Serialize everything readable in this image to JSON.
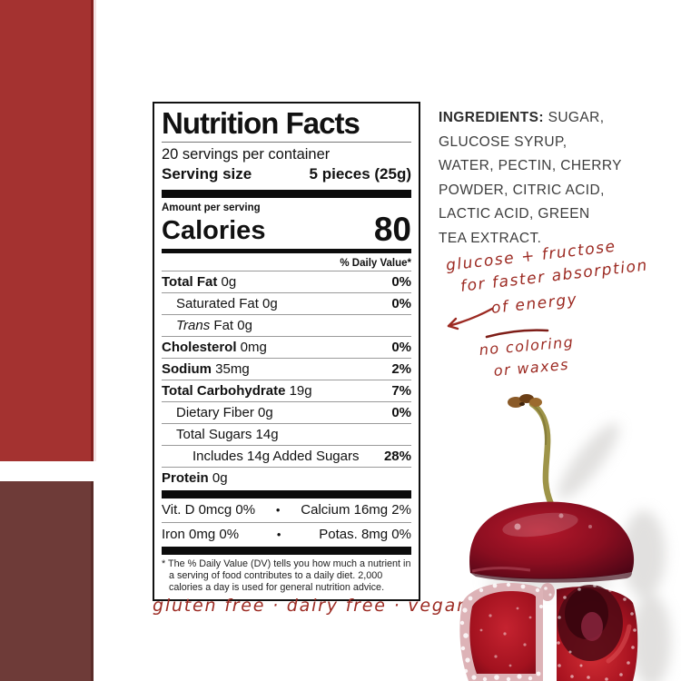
{
  "colors": {
    "panel_red": "#a43230",
    "panel_maroon": "#6e3b38",
    "handwriting_ink": "#9c2a22",
    "label_text": "#111111"
  },
  "label": {
    "title": "Nutrition Facts",
    "servings_per_container": "20 servings per container",
    "serving_size_label": "Serving size",
    "serving_size_value": "5 pieces (25g)",
    "amount_per_serving": "Amount per serving",
    "calories_label": "Calories",
    "calories_value": "80",
    "daily_value_header": "% Daily Value*",
    "rows": [
      {
        "indent": 0,
        "bold": "Total Fat",
        "rest": " 0g",
        "pct": "0%"
      },
      {
        "indent": 1,
        "rest": "Saturated Fat 0g",
        "pct": "0%"
      },
      {
        "indent": 1,
        "italic": "Trans",
        "rest": " Fat 0g",
        "pct": ""
      },
      {
        "indent": 0,
        "bold": "Cholesterol",
        "rest": " 0mg",
        "pct": "0%"
      },
      {
        "indent": 0,
        "bold": "Sodium",
        "rest": " 35mg",
        "pct": "2%"
      },
      {
        "indent": 0,
        "bold": "Total Carbohydrate",
        "rest": " 19g",
        "pct": "7%"
      },
      {
        "indent": 1,
        "rest": "Dietary Fiber 0g",
        "pct": "0%"
      },
      {
        "indent": 1,
        "rest": "Total Sugars 14g",
        "pct": ""
      },
      {
        "indent": 2,
        "rest": "Includes 14g Added Sugars",
        "pct": "28%"
      },
      {
        "indent": 0,
        "bold": "Protein",
        "rest": " 0g",
        "pct": ""
      }
    ],
    "micros": [
      {
        "left": "Vit. D 0mcg 0%",
        "bullet": "•",
        "right": "Calcium 16mg 2%"
      },
      {
        "left": "Iron 0mg 0%",
        "bullet": "•",
        "right": "Potas. 8mg 0%"
      }
    ],
    "footnote": "* The % Daily Value (DV) tells you how much a nutrient in a serving of food contributes to a daily diet. 2,000 calories a day is used for general nutrition advice."
  },
  "ingredients": {
    "bold_label": "INGREDIENTS:",
    "first_line_rest": " SUGAR,",
    "lines": [
      "GLUCOSE SYRUP,",
      "WATER, PECTIN, CHERRY",
      "POWDER, CITRIC ACID,",
      "LACTIC ACID, GREEN",
      "TEA EXTRACT."
    ]
  },
  "annotations": {
    "note1_line1": "glucose + fructose",
    "note1_line2": "for faster absorption",
    "note1_line3": "of energy",
    "note2_line1": "no coloring",
    "note2_line2": "or waxes"
  },
  "tagline": "gluten free · dairy free · vegan",
  "image": {
    "subject": "cherry cut into gummy pieces with stem"
  }
}
